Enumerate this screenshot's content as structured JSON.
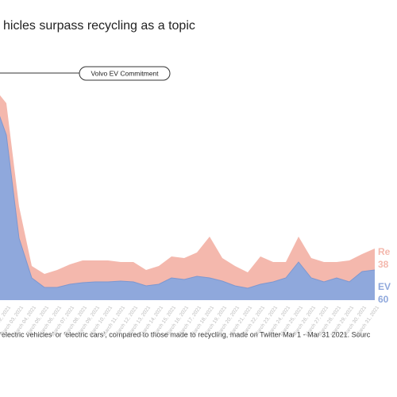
{
  "chart_data": {
    "type": "stacked-area",
    "title": "hicles surpass recycling as a topic",
    "annotation": "Volvo EV Commitment",
    "footnote": "‘electric vehicles’ or ‘electric cars’, compared to those made to recycling, made on Twitter Mar 1 - Mar 31 2021.  Sourc",
    "categories": [
      "March 01, 2021",
      "March 02, 2021",
      "March 03, 2021",
      "March 04, 2021",
      "March 05, 2021",
      "March 06, 2021",
      "March 07, 2021",
      "March 08, 2021",
      "March 09, 2021",
      "March 10, 2021",
      "March 11, 2021",
      "March 12, 2021",
      "March 13, 2021",
      "March 14, 2021",
      "March 15, 2021",
      "March 16, 2021",
      "March 17, 2021",
      "March 18, 2021",
      "March 19, 2021",
      "March 20, 2021",
      "March 21, 2021",
      "March 22, 2021",
      "March 23, 2021",
      "March 24, 2021",
      "March 25, 2021",
      "March 26, 2021",
      "March 27, 2021",
      "March 28, 2021",
      "March 29, 2021",
      "March 30, 2021",
      "March 31, 2021"
    ],
    "series": [
      {
        "name": "EV",
        "value_label": "60",
        "color": "#8fa8dc",
        "values": [
          253,
          208,
          78,
          28,
          16,
          16,
          20,
          22,
          23,
          23,
          24,
          23,
          18,
          20,
          28,
          26,
          30,
          28,
          24,
          18,
          15,
          20,
          23,
          28,
          48,
          28,
          23,
          28,
          23,
          36,
          38
        ]
      },
      {
        "name": "Re",
        "value_label": "38",
        "color": "#f4b8ad",
        "values": [
          15,
          40,
          40,
          15,
          17,
          22,
          25,
          28,
          27,
          27,
          24,
          25,
          20,
          23,
          27,
          27,
          30,
          52,
          29,
          25,
          20,
          35,
          25,
          20,
          32,
          25,
          25,
          20,
          27,
          22,
          27
        ]
      }
    ],
    "ylim": [
      0,
      270
    ]
  }
}
